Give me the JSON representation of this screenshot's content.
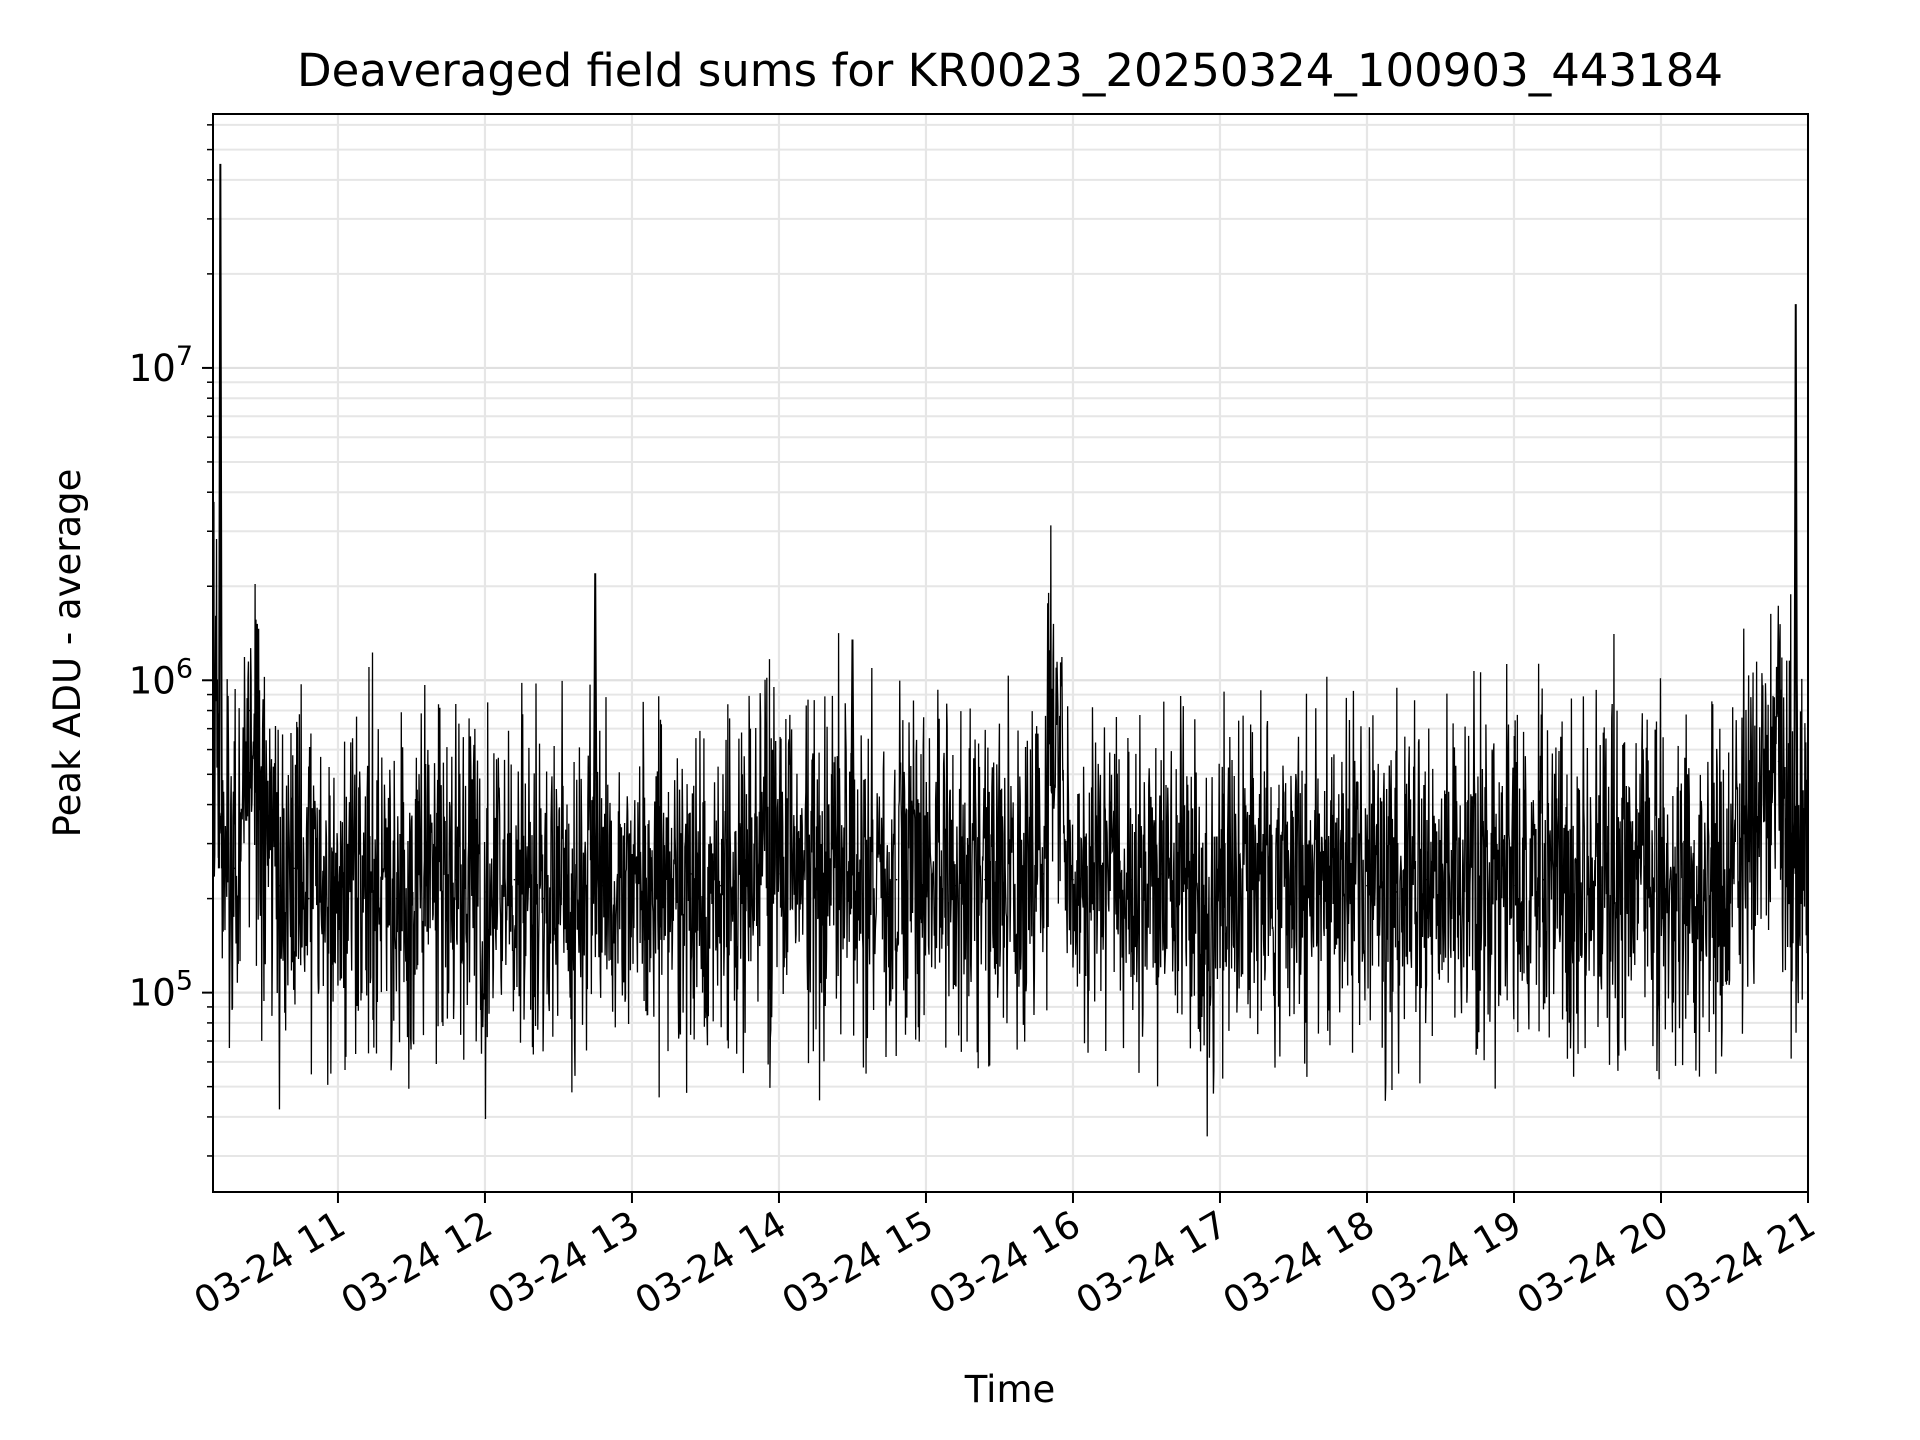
{
  "chart_data": {
    "type": "line",
    "title": "Deaveraged field sums for KR0023_20250324_100903_443184",
    "xlabel": "Time",
    "ylabel": "Peak ADU - average",
    "xlim": [
      "2025-03-24 10:09",
      "2025-03-24 21:00"
    ],
    "ylim": [
      23000,
      65000000
    ],
    "y_scale": "log",
    "grid": "on (major and minor)",
    "line_color": "#000000",
    "x_ticks": [
      "03-24 11",
      "03-24 12",
      "03-24 13",
      "03-24 14",
      "03-24 15",
      "03-24 16",
      "03-24 17",
      "03-24 18",
      "03-24 19",
      "03-24 20",
      "03-24 21"
    ],
    "x_tick_times": [
      "2025-03-24 11:00",
      "2025-03-24 12:00",
      "2025-03-24 13:00",
      "2025-03-24 14:00",
      "2025-03-24 15:00",
      "2025-03-24 16:00",
      "2025-03-24 17:00",
      "2025-03-24 18:00",
      "2025-03-24 19:00",
      "2025-03-24 20:00",
      "2025-03-24 21:00"
    ],
    "y_ticks": [
      {
        "value": 100000,
        "base": "10",
        "exp": "5"
      },
      {
        "value": 1000000,
        "base": "10",
        "exp": "6"
      },
      {
        "value": 10000000,
        "base": "10",
        "exp": "7"
      }
    ],
    "series": [
      {
        "x": [
          "2025-03-24 10:10",
          "2025-03-24 10:12",
          "2025-03-24 10:18",
          "2025-03-24 10:24",
          "2025-03-24 10:30",
          "2025-03-24 10:36",
          "2025-03-24 10:42",
          "2025-03-24 10:48",
          "2025-03-24 10:54",
          "2025-03-24 11:00",
          "2025-03-24 11:12",
          "2025-03-24 11:24",
          "2025-03-24 11:36",
          "2025-03-24 11:48",
          "2025-03-24 12:00",
          "2025-03-24 12:12",
          "2025-03-24 12:24",
          "2025-03-24 12:36",
          "2025-03-24 12:45",
          "2025-03-24 12:48",
          "2025-03-24 13:00",
          "2025-03-24 13:12",
          "2025-03-24 13:24",
          "2025-03-24 13:36",
          "2025-03-24 13:48",
          "2025-03-24 14:00",
          "2025-03-24 14:12",
          "2025-03-24 14:24",
          "2025-03-24 14:30",
          "2025-03-24 14:36",
          "2025-03-24 14:48",
          "2025-03-24 15:00",
          "2025-03-24 15:12",
          "2025-03-24 15:24",
          "2025-03-24 15:36",
          "2025-03-24 15:48",
          "2025-03-24 15:51",
          "2025-03-24 16:00",
          "2025-03-24 16:12",
          "2025-03-24 16:24",
          "2025-03-24 16:36",
          "2025-03-24 16:48",
          "2025-03-24 16:55",
          "2025-03-24 17:00",
          "2025-03-24 17:12",
          "2025-03-24 17:24",
          "2025-03-24 17:36",
          "2025-03-24 17:48",
          "2025-03-24 18:00",
          "2025-03-24 18:12",
          "2025-03-24 18:24",
          "2025-03-24 18:36",
          "2025-03-24 18:48",
          "2025-03-24 19:00",
          "2025-03-24 19:12",
          "2025-03-24 19:24",
          "2025-03-24 19:36",
          "2025-03-24 19:48",
          "2025-03-24 20:00",
          "2025-03-24 20:12",
          "2025-03-24 20:24",
          "2025-03-24 20:36",
          "2025-03-24 20:48",
          "2025-03-24 20:55",
          "2025-03-24 21:00"
        ],
        "y": [
          900000,
          45000000,
          250000,
          800000,
          300000,
          220000,
          250000,
          200000,
          230000,
          210000,
          240000,
          200000,
          220000,
          230000,
          210000,
          230000,
          200000,
          210000,
          2200000,
          220000,
          200000,
          230000,
          240000,
          220000,
          250000,
          240000,
          230000,
          260000,
          1350000,
          240000,
          230000,
          240000,
          220000,
          230000,
          220000,
          240000,
          750000,
          230000,
          220000,
          230000,
          240000,
          230000,
          150000,
          220000,
          230000,
          240000,
          220000,
          230000,
          220000,
          210000,
          230000,
          220000,
          240000,
          220000,
          230000,
          210000,
          220000,
          240000,
          220000,
          210000,
          180000,
          450000,
          550000,
          16000000,
          550000
        ]
      }
    ]
  }
}
